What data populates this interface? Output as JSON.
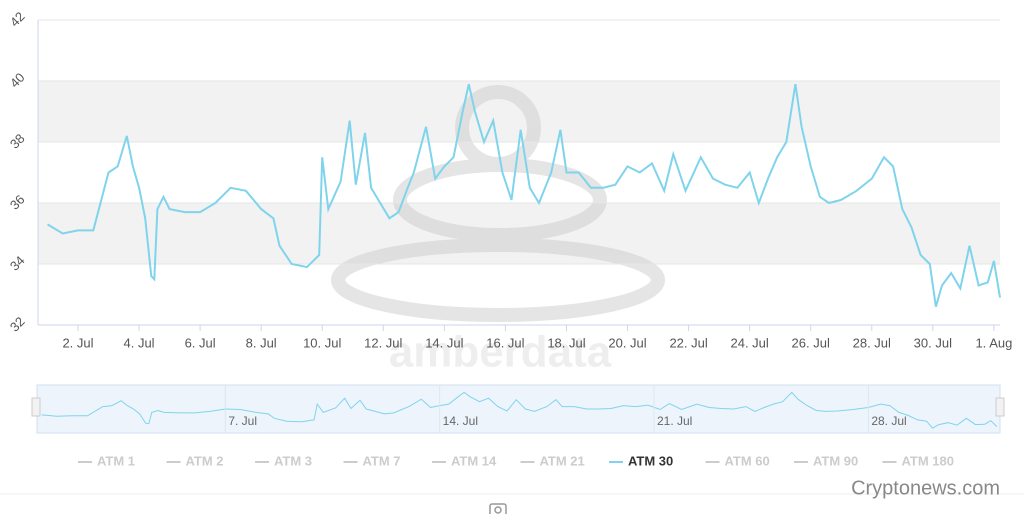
{
  "chart_data": {
    "type": "line",
    "x_unit_note_free": null,
    "series": [
      {
        "name": "ATM 30",
        "color": "#7fd4ec",
        "x": [
          1.0,
          1.5,
          2.0,
          2.5,
          3.0,
          3.3,
          3.6,
          3.8,
          4.0,
          4.2,
          4.4,
          4.5,
          4.6,
          4.8,
          5.0,
          5.5,
          6.0,
          6.5,
          7.0,
          7.5,
          8.0,
          8.4,
          8.6,
          9.0,
          9.5,
          9.9,
          10.0,
          10.2,
          10.6,
          10.9,
          11.1,
          11.4,
          11.6,
          11.9,
          12.2,
          12.5,
          12.8,
          13.0,
          13.4,
          13.7,
          14.0,
          14.3,
          14.6,
          14.8,
          15.0,
          15.3,
          15.6,
          15.9,
          16.2,
          16.5,
          16.8,
          17.1,
          17.5,
          17.8,
          18.0,
          18.4,
          18.8,
          19.2,
          19.6,
          20.0,
          20.4,
          20.8,
          21.2,
          21.5,
          21.9,
          22.4,
          22.8,
          23.2,
          23.6,
          24.0,
          24.3,
          24.6,
          24.9,
          25.2,
          25.5,
          25.7,
          26.0,
          26.3,
          26.6,
          27.0,
          27.5,
          28.0,
          28.4,
          28.7,
          29.0,
          29.3,
          29.6,
          29.9,
          30.1,
          30.3,
          30.6,
          30.9,
          31.2,
          31.5,
          31.8,
          32.0,
          32.2
        ],
        "values": [
          35.3,
          35.0,
          35.1,
          35.1,
          37.0,
          37.2,
          38.2,
          37.2,
          36.5,
          35.5,
          33.6,
          33.5,
          35.8,
          36.2,
          35.8,
          35.7,
          35.7,
          36.0,
          36.5,
          36.4,
          35.8,
          35.5,
          34.6,
          34.0,
          33.9,
          34.3,
          37.5,
          35.8,
          36.7,
          38.7,
          36.6,
          38.3,
          36.5,
          36.0,
          35.5,
          35.7,
          36.5,
          37.0,
          38.5,
          36.8,
          37.2,
          37.5,
          39.0,
          39.9,
          39.0,
          38.0,
          38.7,
          37.0,
          36.1,
          38.4,
          36.5,
          36.0,
          37.0,
          38.4,
          37.0,
          37.0,
          36.5,
          36.5,
          36.6,
          37.2,
          37.0,
          37.3,
          36.4,
          37.6,
          36.4,
          37.5,
          36.8,
          36.6,
          36.5,
          37.0,
          36.0,
          36.8,
          37.5,
          38.0,
          39.9,
          38.5,
          37.2,
          36.2,
          36.0,
          36.1,
          36.4,
          36.8,
          37.5,
          37.2,
          35.8,
          35.2,
          34.3,
          34.0,
          32.6,
          33.3,
          33.7,
          33.2,
          34.6,
          33.3,
          33.4,
          34.1,
          32.9
        ]
      }
    ],
    "legend_items": [
      "ATM 1",
      "ATM 2",
      "ATM 3",
      "ATM 7",
      "ATM 14",
      "ATM 21",
      "ATM 30",
      "ATM 60",
      "ATM 90",
      "ATM 180"
    ],
    "active_legend_item": 6,
    "xlim": [
      0.69,
      32.2
    ],
    "xticks": [
      {
        "value": 2,
        "label": "2. Jul"
      },
      {
        "value": 4,
        "label": "4. Jul"
      },
      {
        "value": 6,
        "label": "6. Jul"
      },
      {
        "value": 8,
        "label": "8. Jul"
      },
      {
        "value": 10,
        "label": "10. Jul"
      },
      {
        "value": 12,
        "label": "12. Jul"
      },
      {
        "value": 14,
        "label": "14. Jul"
      },
      {
        "value": 16,
        "label": "16. Jul"
      },
      {
        "value": 18,
        "label": "18. Jul"
      },
      {
        "value": 20,
        "label": "20. Jul"
      },
      {
        "value": 22,
        "label": "22. Jul"
      },
      {
        "value": 24,
        "label": "24. Jul"
      },
      {
        "value": 26,
        "label": "26. Jul"
      },
      {
        "value": 28,
        "label": "28. Jul"
      },
      {
        "value": 30,
        "label": "30. Jul"
      },
      {
        "value": 32,
        "label": "1. Aug"
      }
    ],
    "ylim": [
      32,
      42
    ],
    "yticks": [
      32,
      34,
      36,
      38,
      40,
      42
    ],
    "alternate_bands": true,
    "navigator": {
      "xlim": [
        0.85,
        32.3
      ],
      "ylim": [
        32,
        41
      ],
      "xticks": [
        {
          "value": 7,
          "label": "7. Jul"
        },
        {
          "value": 14,
          "label": "14. Jul"
        },
        {
          "value": 21,
          "label": "21. Jul"
        },
        {
          "value": 28,
          "label": "28. Jul"
        }
      ]
    },
    "watermark": "amberdata",
    "credit": "Cryptonews.com"
  }
}
